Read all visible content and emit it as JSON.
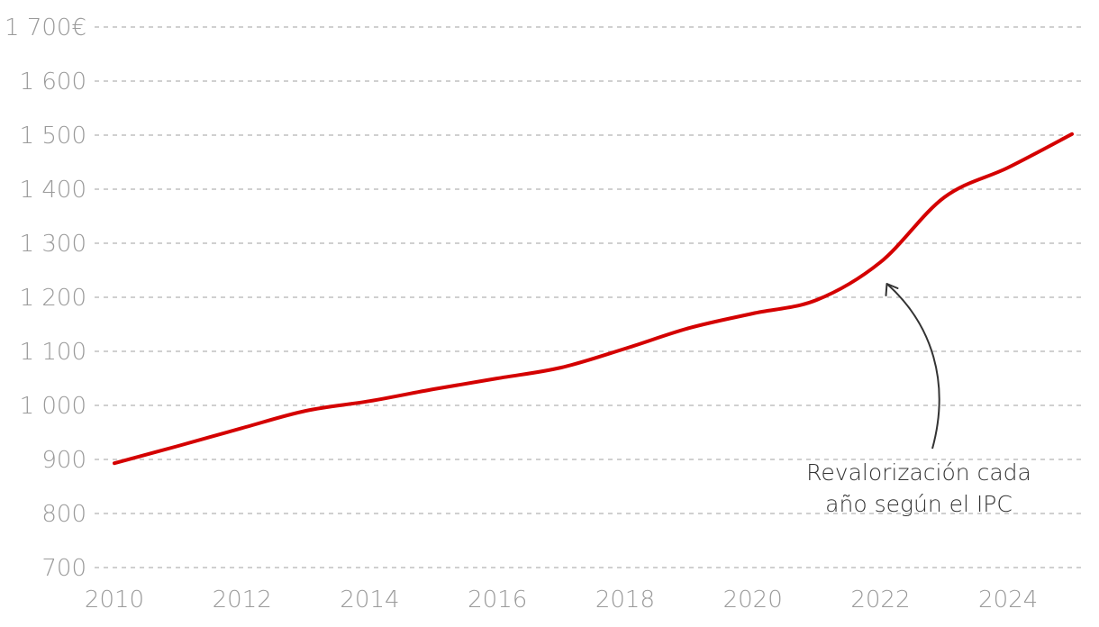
{
  "chart_data": {
    "type": "line",
    "title": "",
    "xlabel": "",
    "ylabel": "",
    "xlim": [
      2010,
      2025
    ],
    "ylim": [
      700,
      1700
    ],
    "x_ticks": [
      2010,
      2012,
      2014,
      2016,
      2018,
      2020,
      2022,
      2024
    ],
    "x_tick_labels": [
      "2010",
      "2012",
      "2014",
      "2016",
      "2018",
      "2020",
      "2022",
      "2024"
    ],
    "y_ticks": [
      700,
      800,
      900,
      1000,
      1100,
      1200,
      1300,
      1400,
      1500,
      1600,
      1700
    ],
    "y_tick_labels": [
      "700",
      "800",
      "900",
      "1 000",
      "1 100",
      "1 200",
      "1 300",
      "1 400",
      "1 500",
      "1 600",
      "1 700€"
    ],
    "grid": "horizontal dashed",
    "line_color": "#d40000",
    "series": [
      {
        "x": [
          2010,
          2011,
          2012,
          2013,
          2014,
          2015,
          2016,
          2017,
          2018,
          2019,
          2020,
          2021,
          2022,
          2023,
          2024,
          2025
        ],
        "values": [
          893,
          925,
          958,
          990,
          1008,
          1030,
          1050,
          1070,
          1105,
          1143,
          1170,
          1195,
          1265,
          1385,
          1440,
          1502
        ]
      }
    ],
    "annotation": {
      "lines": [
        "Revalorización cada",
        "año según el IPC"
      ],
      "points_to": {
        "x": 2022.1,
        "y": 1225
      }
    }
  }
}
